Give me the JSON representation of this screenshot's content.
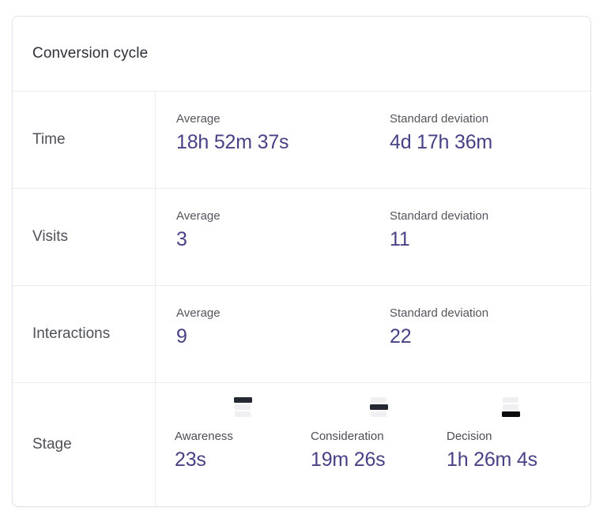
{
  "card": {
    "title": "Conversion cycle",
    "rows": [
      {
        "label": "Time",
        "metrics": [
          {
            "label": "Average",
            "value": "18h 52m 37s"
          },
          {
            "label": "Standard deviation",
            "value": "4d 17h 36m"
          }
        ]
      },
      {
        "label": "Visits",
        "metrics": [
          {
            "label": "Average",
            "value": "3"
          },
          {
            "label": "Standard deviation",
            "value": "11"
          }
        ]
      },
      {
        "label": "Interactions",
        "metrics": [
          {
            "label": "Average",
            "value": "9"
          },
          {
            "label": "Standard deviation",
            "value": "22"
          }
        ]
      },
      {
        "label": "Stage",
        "stages": [
          {
            "label": "Awareness",
            "value": "23s",
            "icon": "funnel-stage-top-icon",
            "active_bar": 0,
            "active_bar_color": "#242833"
          },
          {
            "label": "Consideration",
            "value": "19m 26s",
            "icon": "funnel-stage-middle-icon",
            "active_bar": 1,
            "active_bar_color": "#242833"
          },
          {
            "label": "Decision",
            "value": "1h 26m 4s",
            "icon": "funnel-stage-bottom-icon",
            "active_bar": 2,
            "active_bar_color": "#0c0c0e"
          }
        ]
      }
    ]
  },
  "colors": {
    "accent_value": "#474286",
    "label_gray": "#54555e",
    "row_label_gray": "#4f5058",
    "card_border": "#e2e4e9",
    "divider": "#ebecf0",
    "icon_bar_inactive": "#f0f0f2"
  }
}
